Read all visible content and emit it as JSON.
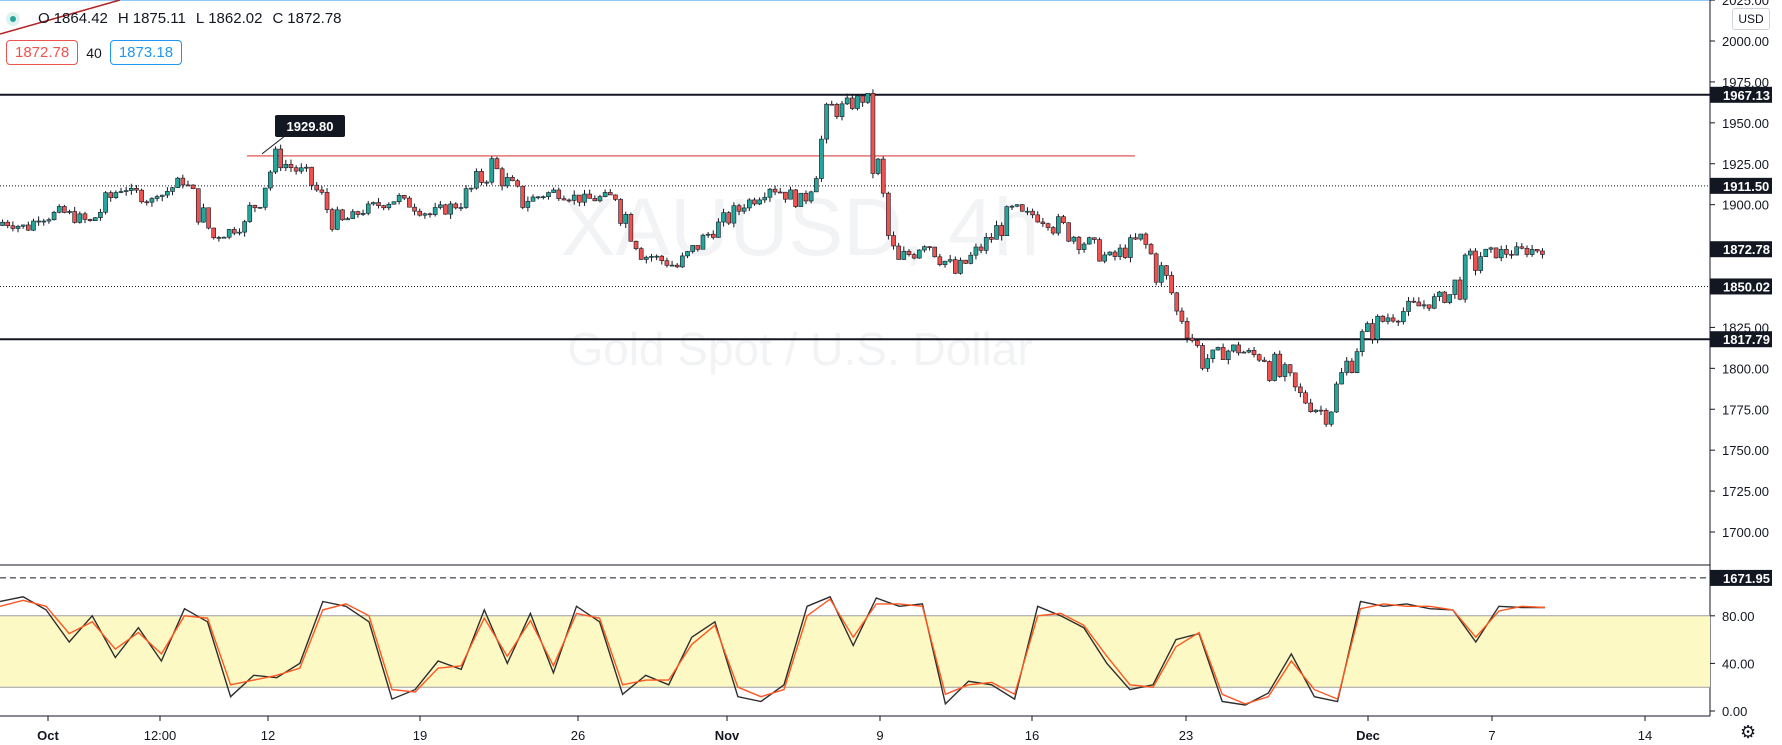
{
  "header": {
    "ohlc": [
      {
        "k": "O",
        "v": "1864.42"
      },
      {
        "k": "H",
        "v": "1875.11"
      },
      {
        "k": "L",
        "v": "1862.02"
      },
      {
        "k": "C",
        "v": "1872.78"
      }
    ],
    "sell_price": "1872.78",
    "spread": "40",
    "buy_price": "1873.18",
    "currency": "USD"
  },
  "watermark": {
    "symbol": "XAUUSD, 4h",
    "name": "Gold Spot / U.S. Dollar"
  },
  "chart_data": {
    "type": "candlestick",
    "price_axis": {
      "ticks": [
        "1700.00",
        "1725.00",
        "1750.00",
        "1775.00",
        "1800.00",
        "1825.00",
        "1850.00",
        "1875.00",
        "1900.00",
        "1925.00",
        "1950.00",
        "1975.00",
        "2000.00",
        "2025.00"
      ],
      "range": [
        1671.95,
        2025
      ]
    },
    "time_axis": {
      "labels": [
        "Oct",
        "12:00",
        "12",
        "19",
        "26",
        "Nov",
        "9",
        "16",
        "23",
        "Dec",
        "7",
        "14"
      ]
    },
    "level_lines": [
      {
        "price": 1967.13,
        "label": "1967.13",
        "style": "solid"
      },
      {
        "price": 1911.5,
        "label": "1911.50",
        "style": "dotted"
      },
      {
        "price": 1850.02,
        "label": "1850.02",
        "style": "dotted"
      },
      {
        "price": 1817.79,
        "label": "1817.79",
        "style": "solid"
      },
      {
        "price": 1671.95,
        "label": "1671.95",
        "style": "dashed"
      }
    ],
    "current_price": {
      "price": 1872.78,
      "label": "1872.78"
    },
    "annotation": {
      "price": 1929.8,
      "label": "1929.80"
    },
    "segment_close": [
      1886,
      1896,
      1889,
      1912,
      1902,
      1915,
      1880,
      1888,
      1928,
      1918,
      1888,
      1898,
      1904,
      1894,
      1901,
      1924,
      1902,
      1908,
      1903,
      1905,
      1870,
      1862,
      1882,
      1897,
      1912,
      1902,
      1956,
      1965,
      1860,
      1880,
      1858,
      1877,
      1898,
      1890,
      1880,
      1866,
      1879,
      1846,
      1805,
      1812,
      1806,
      1785,
      1772,
      1816,
      1832,
      1838,
      1845,
      1870,
      1871,
      1873
    ],
    "segment_range": [
      [
        1880,
        1892
      ],
      [
        1890,
        1902
      ],
      [
        1882,
        1898
      ],
      [
        1888,
        1918
      ],
      [
        1895,
        1910
      ],
      [
        1905,
        1922
      ],
      [
        1873,
        1912
      ],
      [
        1880,
        1894
      ],
      [
        1888,
        1934
      ],
      [
        1910,
        1930
      ],
      [
        1884,
        1920
      ],
      [
        1890,
        1902
      ],
      [
        1896,
        1910
      ],
      [
        1888,
        1904
      ],
      [
        1894,
        1910
      ],
      [
        1896,
        1930
      ],
      [
        1896,
        1925
      ],
      [
        1900,
        1912
      ],
      [
        1896,
        1910
      ],
      [
        1896,
        1910
      ],
      [
        1860,
        1908
      ],
      [
        1858,
        1872
      ],
      [
        1862,
        1886
      ],
      [
        1880,
        1904
      ],
      [
        1898,
        1918
      ],
      [
        1896,
        1916
      ],
      [
        1902,
        1966
      ],
      [
        1948,
        1968
      ],
      [
        1850,
        1968
      ],
      [
        1854,
        1888
      ],
      [
        1852,
        1880
      ],
      [
        1860,
        1884
      ],
      [
        1868,
        1900
      ],
      [
        1880,
        1896
      ],
      [
        1868,
        1898
      ],
      [
        1856,
        1880
      ],
      [
        1860,
        1884
      ],
      [
        1825,
        1880
      ],
      [
        1800,
        1835
      ],
      [
        1800,
        1818
      ],
      [
        1800,
        1815
      ],
      [
        1770,
        1812
      ],
      [
        1765,
        1790
      ],
      [
        1772,
        1820
      ],
      [
        1808,
        1840
      ],
      [
        1822,
        1845
      ],
      [
        1835,
        1852
      ],
      [
        1826,
        1875
      ],
      [
        1862,
        1877
      ],
      [
        1862,
        1876
      ]
    ],
    "stochastic": {
      "levels": [
        20,
        80
      ],
      "ticks": [
        "0.00",
        "40.00",
        "80.00"
      ],
      "k_points": [
        92,
        96,
        85,
        58,
        80,
        45,
        70,
        42,
        86,
        75,
        12,
        30,
        28,
        40,
        92,
        88,
        75,
        10,
        18,
        42,
        35,
        85,
        40,
        82,
        32,
        88,
        75,
        14,
        30,
        22,
        62,
        75,
        12,
        8,
        22,
        88,
        96,
        55,
        95,
        88,
        90,
        6,
        25,
        22,
        10,
        88,
        80,
        70,
        40,
        18,
        22,
        60,
        65,
        8,
        5,
        15,
        48,
        12,
        8,
        92,
        88,
        90,
        86,
        85,
        58,
        88,
        87,
        87
      ],
      "d_points": [
        88,
        93,
        88,
        65,
        75,
        52,
        66,
        48,
        80,
        78,
        22,
        26,
        30,
        36,
        85,
        90,
        80,
        18,
        16,
        36,
        38,
        78,
        46,
        76,
        38,
        82,
        78,
        22,
        26,
        26,
        56,
        72,
        20,
        12,
        18,
        80,
        94,
        62,
        90,
        90,
        88,
        14,
        22,
        24,
        14,
        80,
        82,
        72,
        46,
        22,
        20,
        54,
        66,
        14,
        6,
        12,
        42,
        18,
        10,
        86,
        90,
        88,
        88,
        85,
        62,
        84,
        88,
        87
      ]
    }
  }
}
